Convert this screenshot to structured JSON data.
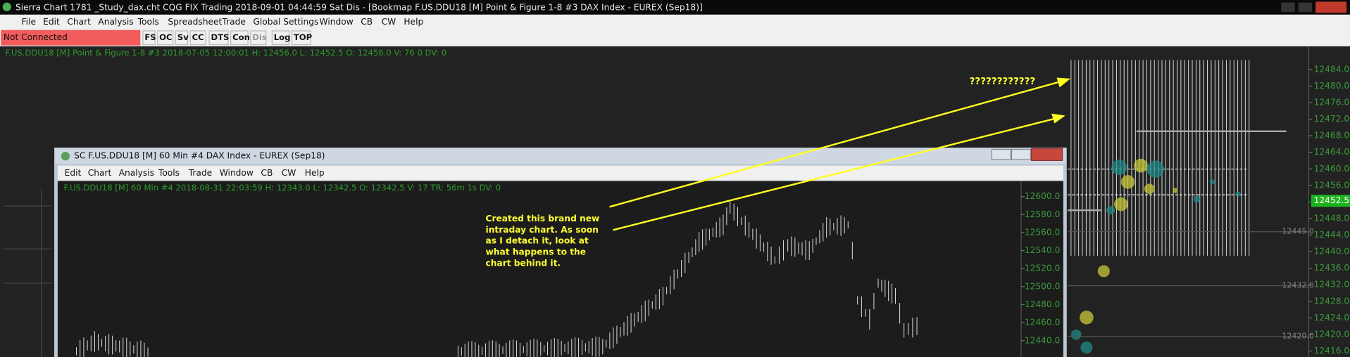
{
  "title_bar": {
    "title": "Sierra Chart 1781 _Study_dax.cht  CQG FIX Trading 2018-09-01  04:44:59 Sat  Dis - [Bookmap  F.US.DDU18 [M]  Point & Figure 1-8  #3  DAX Index - EUREX (Sep18)]"
  },
  "menu": {
    "items": [
      "File",
      "Edit",
      "Chart",
      "Analysis",
      "Tools",
      "Spreadsheet",
      "Trade",
      "Global Settings",
      "Window",
      "CB",
      "CW",
      "Help"
    ]
  },
  "toolbar": {
    "status": "Not Connected",
    "buttons": [
      "FS",
      "OC",
      "Sv",
      "CC",
      "DTS",
      "Con",
      "Dis",
      "Log",
      "TOP"
    ]
  },
  "main_chart": {
    "header": "F.US.DDU18 [M]  Point & Figure 1-8  #3 2018-07-05 12:00:01 H: 12456.0 L: 12452.5 O: 12456.0 V: 76 0 DV: 0",
    "price_axis": [
      "12484.0",
      "12480.0",
      "12476.0",
      "12472.0",
      "12468.0",
      "12464.0",
      "12460.0",
      "12456.0",
      "12452.0",
      "12448.0",
      "12444.0",
      "12440.0",
      "12436.0",
      "12432.0",
      "12428.0",
      "12424.0",
      "12420.0",
      "12416.0"
    ],
    "current_price": "12452.5",
    "levels": [
      "12445.0",
      "12432.0",
      "12420.0"
    ],
    "annotation": "????????????"
  },
  "inner_window": {
    "title": "SC F.US.DDU18 [M]  60 Min  #4  DAX Index - EUREX (Sep18)",
    "menu": [
      "Edit",
      "Chart",
      "Analysis",
      "Tools",
      "Trade",
      "Window",
      "CB",
      "CW",
      "Help"
    ],
    "header": "F.US.DDU18 [M]  60 Min  #4 2018-08-31 22:03:59 H: 12343.0 L: 12342.5 O: 12342.5 V: 17 TR: 56m 1s DV: 0",
    "price_axis": [
      "12600.0",
      "12580.0",
      "12560.0",
      "12540.0",
      "12520.0",
      "12500.0",
      "12480.0",
      "12460.0",
      "12440.0"
    ]
  },
  "note": {
    "lines": [
      "Created this brand new",
      "intraday chart. As soon",
      "as I detach it, look at",
      "what happens to the",
      "chart behind it."
    ]
  }
}
